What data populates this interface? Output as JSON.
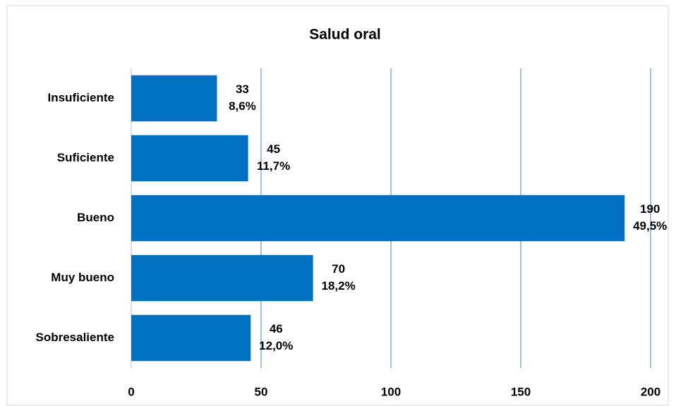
{
  "chart_data": {
    "type": "hbar",
    "title": "Salud oral",
    "categories": [
      "Insuficiente",
      "Suficiente",
      "Bueno",
      "Muy bueno",
      "Sobresaliente"
    ],
    "values": [
      33,
      45,
      190,
      70,
      46
    ],
    "shares": [
      8.6,
      11.7,
      49.5,
      18.2,
      12.0
    ],
    "share_labels": [
      "8,6%",
      "11,7%",
      "49,5%",
      "18,2%",
      "12,0%"
    ],
    "color": "#0070c0",
    "xlim": [
      0,
      200
    ],
    "xticks": [
      0,
      50,
      100,
      150,
      200
    ],
    "grid": true
  }
}
